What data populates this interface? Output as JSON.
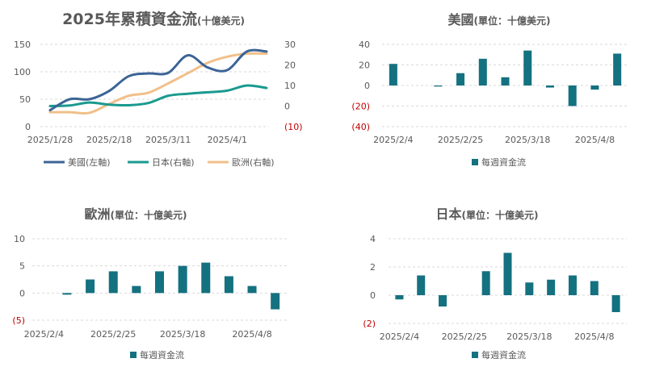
{
  "chart_data": [
    {
      "id": "cumulative",
      "type": "line",
      "title": "2025年累積資金流",
      "title_suffix": "(十億美元)",
      "x": [
        "2025/1/28",
        "2025/2/4",
        "2025/2/11",
        "2025/2/18",
        "2025/2/25",
        "2025/3/4",
        "2025/3/11",
        "2025/3/18",
        "2025/3/25",
        "2025/4/1",
        "2025/4/8",
        "2025/4/15"
      ],
      "x_tick_labels": [
        "2025/1/28",
        "2025/2/18",
        "2025/3/11",
        "2025/4/1"
      ],
      "y_left_ticks": [
        "150",
        "100",
        "50",
        "0"
      ],
      "y_right_ticks": [
        "30",
        "20",
        "10",
        "0",
        "(10)"
      ],
      "ylim_left": [
        0,
        150
      ],
      "ylim_right": [
        -10,
        30
      ],
      "series": [
        {
          "name": "美國(左軸)",
          "axis": "left",
          "color": "#3c6496",
          "values": [
            30,
            50,
            50,
            65,
            92,
            97,
            98,
            130,
            108,
            103,
            137,
            137
          ]
        },
        {
          "name": "日本(右軸)",
          "axis": "right",
          "color": "#1a9a8f",
          "values": [
            0,
            0.3,
            1.7,
            0.7,
            0.4,
            1.5,
            5,
            6,
            6.7,
            7.5,
            10,
            8.8
          ]
        },
        {
          "name": "歐洲(右軸)",
          "axis": "right",
          "color": "#f0c08a",
          "values": [
            -3,
            -3,
            -3.3,
            1,
            5,
            6.5,
            11,
            16,
            21,
            24,
            25.5,
            25.5
          ]
        }
      ],
      "grid": true,
      "legend_position": "bottom"
    },
    {
      "id": "us",
      "type": "bar",
      "title": "美國",
      "title_suffix": "(單位：十億美元)",
      "x": [
        "2025/2/4",
        "2025/2/11",
        "2025/2/18",
        "2025/2/25",
        "2025/3/4",
        "2025/3/11",
        "2025/3/18",
        "2025/3/25",
        "2025/4/1",
        "2025/4/8",
        "2025/4/15"
      ],
      "x_tick_labels": [
        "2025/2/4",
        "2025/2/25",
        "2025/3/18",
        "2025/4/8"
      ],
      "y_ticks": [
        "40",
        "20",
        "0",
        "(20)",
        "(40)"
      ],
      "ylim": [
        -40,
        40
      ],
      "series": [
        {
          "name": "每週資金流",
          "color": "#147180",
          "values": [
            21,
            0,
            -1,
            12,
            26,
            8,
            34,
            -2,
            -20,
            -4,
            31
          ]
        }
      ],
      "grid": true,
      "legend_position": "bottom"
    },
    {
      "id": "europe",
      "type": "bar",
      "title": "歐洲",
      "title_suffix": "(單位：十億美元)",
      "x": [
        "2025/2/4",
        "2025/2/11",
        "2025/2/18",
        "2025/2/25",
        "2025/3/4",
        "2025/3/11",
        "2025/3/18",
        "2025/3/25",
        "2025/4/1",
        "2025/4/8",
        "2025/4/15"
      ],
      "x_tick_labels": [
        "2025/2/4",
        "2025/2/25",
        "2025/3/18",
        "2025/4/8"
      ],
      "y_ticks": [
        "10",
        "5",
        "0",
        "(5)"
      ],
      "ylim": [
        -5,
        10
      ],
      "series": [
        {
          "name": "每週資金流",
          "color": "#147180",
          "values": [
            0,
            -0.3,
            2.5,
            4,
            1.3,
            4,
            5,
            5.6,
            3.1,
            1.3,
            -3
          ]
        }
      ],
      "grid": true,
      "legend_position": "bottom"
    },
    {
      "id": "japan",
      "type": "bar",
      "title": "日本",
      "title_suffix": "(單位：十億美元)",
      "x": [
        "2025/2/4",
        "2025/2/11",
        "2025/2/18",
        "2025/2/25",
        "2025/3/4",
        "2025/3/11",
        "2025/3/18",
        "2025/3/25",
        "2025/4/1",
        "2025/4/8",
        "2025/4/15"
      ],
      "x_tick_labels": [
        "2025/2/4",
        "2025/2/25",
        "2025/3/18",
        "2025/4/8"
      ],
      "y_ticks": [
        "4",
        "2",
        "0",
        "(2)"
      ],
      "ylim": [
        -2,
        4
      ],
      "series": [
        {
          "name": "每週資金流",
          "color": "#147180",
          "values": [
            -0.3,
            1.4,
            -0.8,
            0,
            1.7,
            3,
            0.9,
            1.1,
            1.4,
            1,
            -1.2
          ]
        }
      ],
      "grid": true,
      "legend_position": "bottom"
    }
  ]
}
